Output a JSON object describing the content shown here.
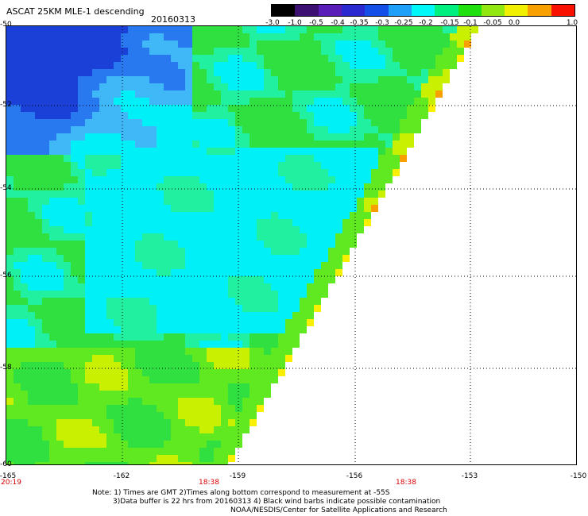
{
  "header": {
    "title": "ASCAT 25KM MLE-1 descending",
    "date": "20160313"
  },
  "colorbar": {
    "tick_labels": [
      "-3.0",
      "-1.0",
      "-0.5",
      "-0.4",
      "-0.35",
      "-0.3",
      "-0.25",
      "-0.2",
      "-0.15",
      "-0.1",
      "-0.05",
      "0.0",
      "1.0"
    ],
    "colors": [
      "#000000",
      "#3c1070",
      "#5a1eb8",
      "#2a2ad0",
      "#1450e8",
      "#1ea0f8",
      "#00f8f8",
      "#00f080",
      "#20e010",
      "#90e810",
      "#f0f000",
      "#f8a000",
      "#f81000"
    ]
  },
  "map": {
    "lat_labels": [
      "-50",
      "-52",
      "-54",
      "-56",
      "-58",
      "-60"
    ],
    "lon_labels": [
      "-165",
      "-162",
      "-159",
      "-156",
      "-153",
      "-150"
    ],
    "time_labels": [
      "20:19",
      "18:38",
      "18:38"
    ],
    "colors": {
      "deep_blue": "#1a40d8",
      "blue": "#2878f0",
      "light_blue": "#40b8f8",
      "cyan": "#00f0f8",
      "aqua_green": "#20f0a0",
      "green": "#30e040",
      "bright_green": "#60e820",
      "yellow_green": "#c8f000",
      "yellow": "#f8f000",
      "orange": "#f8a000",
      "red_orange": "#f86000",
      "grid": "#000000"
    }
  },
  "notes": {
    "line1": "Note: 1) Times are GMT 2)Times along bottom correspond to measurement at -55S",
    "line2": "3)Data buffer is 22 hrs from 20160313 4) Black wind barbs indicate possible contamination",
    "line3": "NOAA/NESDIS/Center for Satellite Applications and Research"
  }
}
